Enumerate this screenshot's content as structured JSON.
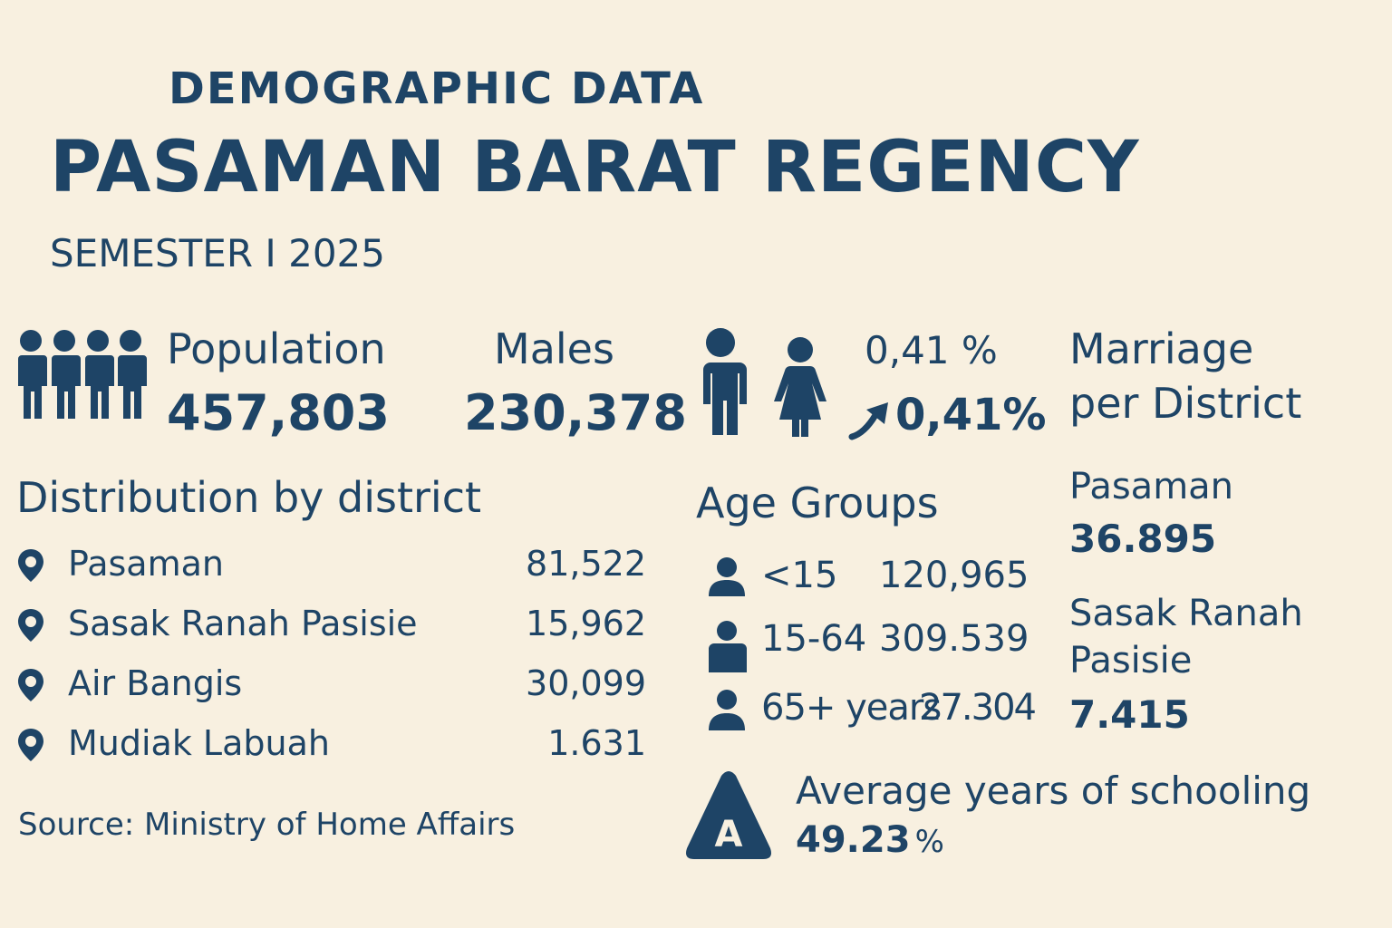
{
  "header": {
    "supertitle": "DEMOGRAPHIC DATA",
    "title": "PASAMAN BARAT REGENCY",
    "subtitle": "SEMESTER I 2025"
  },
  "population": {
    "label": "Population",
    "value": "457,803",
    "icon": "people-group-icon"
  },
  "males": {
    "label": "Males",
    "value": "230,378"
  },
  "growth": {
    "rate": "0,41 %",
    "rate_bold": "0,41%",
    "icons": [
      "man-icon",
      "woman-icon",
      "trend-up-arrow-icon"
    ]
  },
  "marriage": {
    "title_line1": "Marriage",
    "title_line2": "per District",
    "items": [
      {
        "name": "Pasaman",
        "value": "36.895"
      },
      {
        "name_line1": "Sasak Ranah",
        "name_line2": "Pasisie",
        "value": "7.415"
      }
    ]
  },
  "distribution": {
    "title": "Distribution by district",
    "rows": [
      {
        "name": "Pasaman",
        "value": "81,522"
      },
      {
        "name": "Sasak Ranah Pasisie",
        "value": "15,962"
      },
      {
        "name": "Air Bangis",
        "value": "30,099"
      },
      {
        "name": "Mudiak Labuah",
        "value": "1.631"
      }
    ],
    "source": "Source: Ministry of Home Affairs"
  },
  "age_groups": {
    "title": "Age Groups",
    "rows": [
      {
        "label": "<15",
        "value": "120,965"
      },
      {
        "label": "15-64",
        "value": "309.539"
      },
      {
        "label": "65+ years",
        "value": "27.304"
      }
    ]
  },
  "schooling": {
    "label": "Average years of schooling",
    "value": "49.23",
    "unit": "%",
    "badge_letter": "A"
  },
  "colors": {
    "primary": "#1e4466",
    "background": "#f8f0e0"
  }
}
